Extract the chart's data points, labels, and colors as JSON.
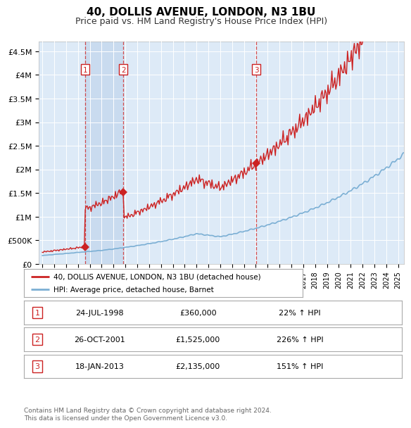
{
  "title": "40, DOLLIS AVENUE, LONDON, N3 1BU",
  "subtitle": "Price paid vs. HM Land Registry's House Price Index (HPI)",
  "sales": [
    {
      "date_num": 1998.6,
      "price": 360000,
      "label": "1"
    },
    {
      "date_num": 2001.83,
      "price": 1525000,
      "label": "2"
    },
    {
      "date_num": 2013.05,
      "price": 2135000,
      "label": "3"
    }
  ],
  "hpi_color": "#7bafd4",
  "price_color": "#cc2222",
  "bg_color": "#ddeaf7",
  "shade_color": "#c5d8ee",
  "grid_color": "#ffffff",
  "ylim": [
    0,
    4700000
  ],
  "yticks": [
    0,
    500000,
    1000000,
    1500000,
    2000000,
    2500000,
    3000000,
    3500000,
    4000000,
    4500000
  ],
  "ytick_labels": [
    "£0",
    "£500K",
    "£1M",
    "£1.5M",
    "£2M",
    "£2.5M",
    "£3M",
    "£3.5M",
    "£4M",
    "£4.5M"
  ],
  "legend_price_label": "40, DOLLIS AVENUE, LONDON, N3 1BU (detached house)",
  "legend_hpi_label": "HPI: Average price, detached house, Barnet",
  "table_rows": [
    [
      "1",
      "24-JUL-1998",
      "£360,000",
      "22% ↑ HPI"
    ],
    [
      "2",
      "26-OCT-2001",
      "£1,525,000",
      "226% ↑ HPI"
    ],
    [
      "3",
      "18-JAN-2013",
      "£2,135,000",
      "151% ↑ HPI"
    ]
  ],
  "footer": "Contains HM Land Registry data © Crown copyright and database right 2024.\nThis data is licensed under the Open Government Licence v3.0.",
  "xlim_start": 1994.7,
  "xlim_end": 2025.5
}
